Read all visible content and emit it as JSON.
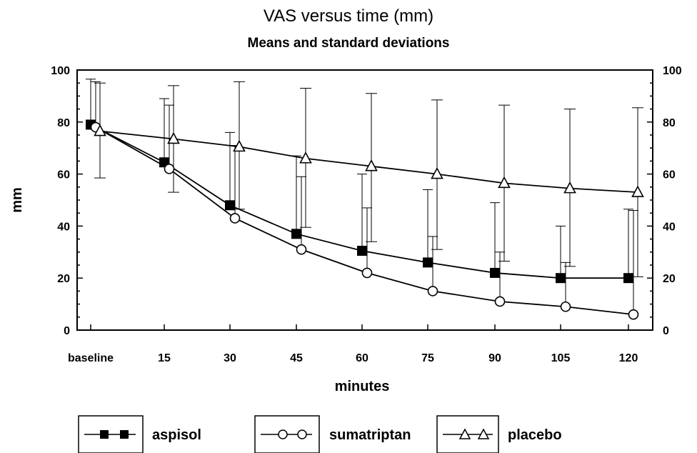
{
  "chart_data": {
    "type": "line",
    "title": "VAS versus time (mm)",
    "subtitle": "Means and standard deviations",
    "xlabel": "minutes",
    "ylabel": "mm",
    "categories": [
      "baseline",
      "15",
      "30",
      "45",
      "60",
      "75",
      "90",
      "105",
      "120"
    ],
    "ylim": [
      0,
      100
    ],
    "yticks": [
      0,
      20,
      40,
      60,
      80,
      100
    ],
    "right_axis": true,
    "grid": false,
    "legend_position": "bottom",
    "series": [
      {
        "name": "aspisol",
        "marker": "filled-square",
        "values": [
          79,
          64.5,
          48,
          37,
          30.5,
          26,
          22,
          20,
          20
        ],
        "sd_upper": [
          96.5,
          89,
          76,
          67,
          60,
          54,
          49,
          40,
          46.5
        ]
      },
      {
        "name": "sumatriptan",
        "marker": "open-circle",
        "values": [
          78,
          62,
          43,
          31,
          22,
          15,
          11,
          9,
          6
        ],
        "sd_upper": [
          95.5,
          86.5,
          71,
          59,
          47,
          36,
          30,
          26,
          46
        ]
      },
      {
        "name": "placebo",
        "marker": "open-triangle",
        "values": [
          76.5,
          73.5,
          70.5,
          66,
          63,
          60,
          56.5,
          54.5,
          53
        ],
        "sd_upper": [
          95,
          94,
          95.5,
          93,
          91,
          88.5,
          86.5,
          85,
          85.5
        ],
        "sd_lower": [
          58.5,
          53,
          46.5,
          39.5,
          34,
          31,
          26.5,
          24.5,
          20.5
        ]
      }
    ]
  }
}
